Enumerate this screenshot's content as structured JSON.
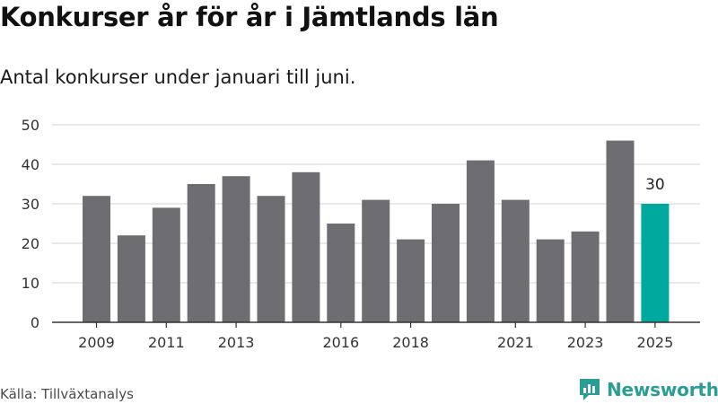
{
  "header": {
    "title": "Konkurser år för år i Jämtlands län",
    "subtitle": "Antal konkurser under januari till juni."
  },
  "footer": {
    "source": "Källa: Tillväxtanalys",
    "brand": "Newsworthy"
  },
  "colors": {
    "bar": "#6e6d72",
    "highlight": "#00a99d",
    "grid": "#dcdcdc",
    "baseline": "#333333",
    "brand": "#2a9d95"
  },
  "icons": {
    "brand_logo": "newsworthy-logo-icon"
  },
  "chart_data": {
    "type": "bar",
    "title": "Konkurser år för år i Jämtlands län",
    "subtitle": "Antal konkurser under januari till juni.",
    "categories": [
      "2009",
      "2010",
      "2011",
      "2012",
      "2013",
      "2014",
      "2015",
      "2016",
      "2017",
      "2018",
      "2019",
      "2020",
      "2021",
      "2022",
      "2023",
      "2024",
      "2025"
    ],
    "values": [
      32,
      22,
      29,
      35,
      37,
      32,
      38,
      25,
      31,
      21,
      30,
      41,
      31,
      21,
      23,
      46,
      30
    ],
    "x_tick_labels": [
      "2009",
      "2011",
      "2013",
      "2016",
      "2018",
      "2021",
      "2023",
      "2025"
    ],
    "ylim": [
      0,
      50
    ],
    "y_ticks": [
      0,
      10,
      20,
      30,
      40,
      50
    ],
    "grid": true,
    "highlighted_category": "2025",
    "data_labels": [
      {
        "category": "2025",
        "text": "30"
      }
    ],
    "xlabel": "",
    "ylabel": ""
  }
}
